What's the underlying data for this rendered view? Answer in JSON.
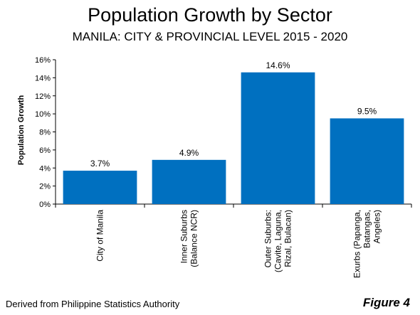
{
  "chart_data": {
    "type": "bar",
    "title": "Population Growth by Sector",
    "subtitle": "MANILA: CITY & PROVINCIAL LEVEL 2015 - 2020",
    "xlabel": "",
    "ylabel": "Population Growth",
    "ylim": [
      0,
      16
    ],
    "yticks": [
      "0%",
      "2%",
      "4%",
      "6%",
      "8%",
      "10%",
      "12%",
      "14%",
      "16%"
    ],
    "categories": [
      [
        "City of Manila"
      ],
      [
        "Inner Suburbs",
        "(Balance NCR)"
      ],
      [
        "Outer Suburbs:",
        "(Cavite, Laguna,",
        "Rizal, Bulacan)"
      ],
      [
        "Exurbs (Papanga,",
        "Batangas,",
        "Angeles)"
      ]
    ],
    "values": [
      3.7,
      4.9,
      14.6,
      9.5
    ],
    "data_labels": [
      "3.7%",
      "4.9%",
      "14.6%",
      "9.5%"
    ],
    "bar_color": "#0070C0",
    "grid": false,
    "legend": "none"
  },
  "footer": {
    "source": "Derived from Philippine Statistics Authority",
    "figure_label": "Figure 4"
  }
}
